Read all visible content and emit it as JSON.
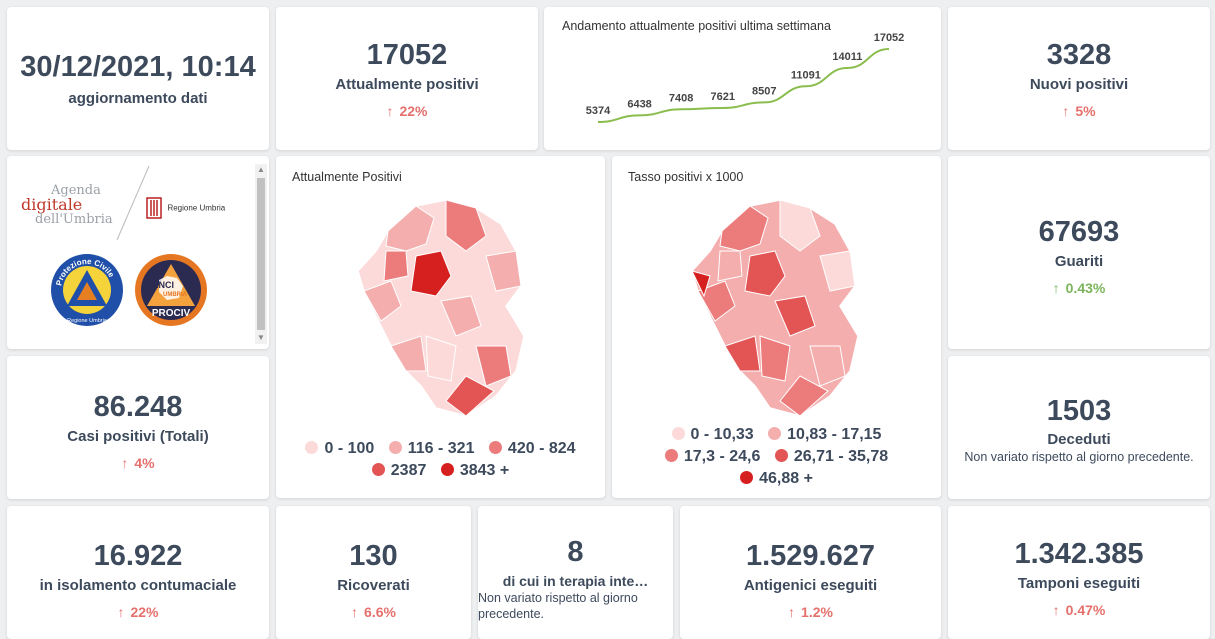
{
  "colors": {
    "trend_up_red": "#e5706c",
    "trend_up_green": "#7bb45c",
    "line": "#8bbd4e",
    "map_scale": [
      "#fcdada",
      "#f5aeae",
      "#ec7c7c",
      "#e35454",
      "#d62020"
    ]
  },
  "update": {
    "datetime": "30/12/2021, 10:14",
    "label": "aggiornamento dati"
  },
  "positivi": {
    "value": "17052",
    "label": "Attualmente positivi",
    "trend": "22%",
    "trend_icon": "arrow-up-icon"
  },
  "chart_data": {
    "type": "line",
    "title": "Andamento attualmente positivi ultima settimana",
    "values": [
      5374,
      6438,
      7408,
      7621,
      8507,
      11091,
      14011,
      17052
    ],
    "labels": [
      "5374",
      "6438",
      "7408",
      "7621",
      "8507",
      "11091",
      "14011",
      "17052"
    ],
    "grid": false
  },
  "nuovi": {
    "value": "3328",
    "label": "Nuovi positivi",
    "trend": "5%"
  },
  "logos": {
    "agenda": [
      "Agenda",
      "digitale",
      "dell'Umbria"
    ],
    "regione": "Regione Umbria",
    "protezione_ring": "Protezione Civile",
    "protezione_bottom": "Regione Umbria",
    "anci_top": "ANCI",
    "anci_mid": "UMBRIA",
    "anci_bottom": "PROCIV"
  },
  "map1": {
    "title": "Attualmente Positivi",
    "legend": [
      "0 - 100",
      "116 - 321",
      "420 - 824",
      "2387",
      "3843 +"
    ]
  },
  "map2": {
    "title": "Tasso positivi x 1000",
    "legend": [
      "0 - 10,33",
      "10,83 - 17,15",
      "17,3 - 24,6",
      "26,71 - 35,78",
      "46,88 +"
    ]
  },
  "guariti": {
    "value": "67693",
    "label": "Guariti",
    "trend": "0.43%"
  },
  "casi": {
    "value": "86.248",
    "label": "Casi positivi (Totali)",
    "trend": "4%"
  },
  "deceduti": {
    "value": "1503",
    "label": "Deceduti",
    "note": "Non variato rispetto al giorno precedente."
  },
  "isolamento": {
    "value": "16.922",
    "label": "in isolamento contumaciale",
    "trend": "22%"
  },
  "ricoverati": {
    "value": "130",
    "label": "Ricoverati",
    "trend": "6.6%"
  },
  "terapia": {
    "value": "8",
    "label": "di cui in terapia inte…",
    "note": "Non variato rispetto al giorno precedente."
  },
  "antigenici": {
    "value": "1.529.627",
    "label": "Antigenici eseguiti",
    "trend": "1.2%"
  },
  "tamponi": {
    "value": "1.342.385",
    "label": "Tamponi eseguiti",
    "trend": "0.47%"
  }
}
